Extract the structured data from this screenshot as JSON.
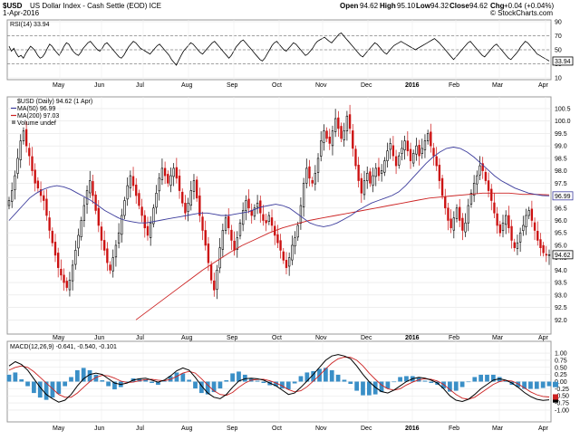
{
  "header": {
    "symbol": "$USD",
    "name": "US Dollar Index - Cash Settle (EOD) ICE",
    "date": "1-Apr-2016",
    "open_label": "Open",
    "open": "94.62",
    "high_label": "High",
    "high": "95.10",
    "low_label": "Low",
    "low": "94.32",
    "close_label": "Close",
    "close": "94.62",
    "chg_label": "Chg",
    "chg": "+0.04 (+0.04%)",
    "credit": "© StockCharts.com"
  },
  "chart_data": [
    {
      "type": "line",
      "panel": "RSI",
      "label": "RSI(14) 33.94",
      "ylim": [
        10,
        90
      ],
      "yticks": [
        10,
        30,
        50,
        70,
        90
      ],
      "reference_lines": [
        30,
        50,
        70
      ],
      "last_value": 33.94,
      "series": [
        {
          "values": [
            55,
            48,
            52,
            45,
            40,
            42,
            38,
            45,
            50,
            55,
            52,
            48,
            42,
            38,
            40,
            45,
            52,
            58,
            55,
            50,
            46,
            42,
            48,
            55,
            60,
            58,
            52,
            47,
            44,
            42,
            46,
            52,
            56,
            60,
            62,
            58,
            54,
            50,
            48,
            52,
            58,
            60,
            56,
            52,
            48,
            44,
            40,
            38,
            42,
            48,
            54,
            58,
            62,
            60,
            56,
            52,
            50,
            48,
            46,
            44,
            48,
            52,
            56,
            58,
            54,
            50,
            46,
            42,
            36,
            32,
            28,
            35,
            42,
            48,
            52,
            56,
            60,
            58,
            54,
            50,
            46,
            44,
            48,
            52,
            56,
            60,
            62,
            58,
            54,
            50,
            46,
            42,
            38,
            42,
            48,
            54,
            58,
            62,
            64,
            60,
            56,
            52,
            48,
            44,
            40,
            36,
            34,
            38,
            44,
            50,
            56,
            60,
            62,
            58,
            54,
            50,
            48,
            52,
            56,
            60,
            58,
            54,
            50,
            46,
            42,
            44,
            48,
            52,
            58,
            62,
            64,
            66,
            68,
            65,
            62,
            60,
            64,
            68,
            72,
            74,
            70,
            66,
            62,
            58,
            54,
            50,
            46,
            42,
            40,
            44,
            48,
            52,
            56,
            60,
            58,
            54,
            50,
            46,
            44,
            48,
            52,
            56,
            58,
            60,
            62,
            60,
            58,
            56,
            54,
            52,
            50,
            52,
            54,
            56,
            58,
            60,
            62,
            64,
            66,
            63,
            60,
            56,
            52,
            48,
            44,
            40,
            36,
            40,
            44,
            48,
            52,
            56,
            60,
            62,
            58,
            54,
            50,
            46,
            42,
            40,
            44,
            48,
            52,
            56,
            58,
            54,
            50,
            46,
            42,
            38,
            36,
            40,
            44,
            48,
            54,
            58,
            62,
            60,
            56,
            52,
            48,
            44,
            42,
            40,
            38,
            36,
            34
          ]
        }
      ]
    },
    {
      "type": "candlestick",
      "panel": "Price",
      "label": "$USD (Daily) 94.62 (1 Apr)",
      "ylim": [
        91.5,
        100.9
      ],
      "yticks": [
        92.0,
        92.5,
        93.0,
        93.5,
        94.0,
        94.5,
        95.0,
        95.5,
        96.0,
        96.5,
        97.0,
        97.5,
        98.0,
        98.5,
        99.0,
        99.5,
        100.0,
        100.5
      ],
      "last_price": 94.62,
      "price_marker_label": "94.62",
      "ma_marker_label": "96.99",
      "legend": [
        "MA(50) 96.99",
        "MA(200) 97.03",
        "Volume undef"
      ],
      "legend_colors": [
        "#3c3c9c",
        "#cc2222",
        "#888888"
      ],
      "x_labels": [
        "May",
        "Jun",
        "Jul",
        "Aug",
        "Sep",
        "Oct",
        "Nov",
        "Dec",
        "2016",
        "Feb",
        "Mar",
        "Apr"
      ],
      "closes": [
        96.8,
        97.2,
        97.8,
        98.5,
        99.2,
        99.6,
        99.0,
        98.6,
        98.0,
        97.5,
        97.3,
        97.0,
        96.8,
        96.2,
        95.6,
        95.1,
        94.6,
        94.1,
        93.8,
        93.5,
        93.3,
        93.6,
        94.2,
        94.8,
        95.4,
        96.0,
        96.6,
        97.2,
        97.6,
        97.0,
        96.4,
        95.8,
        95.2,
        94.8,
        94.3,
        94.0,
        94.5,
        95.0,
        95.5,
        96.2,
        96.8,
        97.4,
        97.8,
        97.4,
        97.0,
        96.6,
        96.2,
        95.7,
        95.4,
        95.9,
        96.5,
        97.1,
        97.7,
        98.1,
        97.8,
        97.5,
        97.8,
        98.1,
        97.7,
        97.2,
        96.7,
        96.3,
        96.7,
        97.2,
        97.6,
        96.9,
        96.2,
        95.6,
        95.0,
        94.3,
        93.6,
        93.2,
        94.0,
        94.9,
        95.6,
        96.1,
        95.7,
        95.2,
        94.8,
        95.3,
        95.9,
        96.4,
        96.8,
        96.5,
        96.2,
        96.5,
        96.7,
        96.3,
        96.0,
        95.9,
        96.2,
        95.8,
        95.4,
        95.1,
        94.8,
        94.4,
        94.1,
        94.5,
        95.0,
        95.3,
        95.8,
        96.6,
        97.5,
        98.1,
        97.7,
        97.5,
        97.9,
        98.5,
        99.2,
        99.6,
        99.3,
        99.1,
        99.6,
        100.1,
        99.7,
        99.3,
        99.6,
        100.2,
        99.7,
        98.9,
        98.2,
        97.6,
        97.1,
        97.6,
        97.9,
        97.5,
        97.8,
        98.1,
        97.8,
        98.0,
        98.4,
        98.8,
        99.1,
        98.6,
        98.2,
        98.6,
        98.9,
        99.2,
        98.8,
        98.4,
        98.7,
        99.0,
        98.6,
        98.9,
        99.2,
        99.5,
        99.0,
        98.6,
        98.2,
        97.6,
        97.0,
        96.5,
        96.0,
        95.7,
        96.1,
        96.5,
        96.0,
        95.6,
        95.9,
        96.6,
        97.1,
        97.5,
        97.8,
        98.2,
        98.0,
        97.6,
        97.2,
        96.8,
        96.3,
        95.8,
        95.5,
        95.9,
        96.2,
        95.7,
        95.2,
        94.9,
        95.1,
        95.5,
        95.8,
        96.2,
        96.4,
        96.0,
        95.6,
        95.2,
        94.9,
        94.7,
        94.6,
        94.62
      ],
      "ma50": [
        96.0,
        96.3,
        96.6,
        96.9,
        97.1,
        97.25,
        97.35,
        97.4,
        97.35,
        97.25,
        97.1,
        96.95,
        96.8,
        96.6,
        96.4,
        96.25,
        96.1,
        96.0,
        95.95,
        95.9,
        95.9,
        95.95,
        96.0,
        96.05,
        96.1,
        96.15,
        96.2,
        96.25,
        96.3,
        96.3,
        96.25,
        96.2,
        96.2,
        96.25,
        96.3,
        96.35,
        96.45,
        96.55,
        96.6,
        96.65,
        96.6,
        96.5,
        96.3,
        96.1,
        95.9,
        95.8,
        95.75,
        95.8,
        95.9,
        96.05,
        96.2,
        96.4,
        96.55,
        96.7,
        96.8,
        96.9,
        97.0,
        97.15,
        97.4,
        97.7,
        98.0,
        98.3,
        98.55,
        98.75,
        98.9,
        98.95,
        98.9,
        98.75,
        98.55,
        98.3,
        98.05,
        97.8,
        97.6,
        97.45,
        97.3,
        97.2,
        97.1,
        97.05,
        97.0,
        96.99
      ],
      "ma200": [
        92.0,
        92.4,
        92.8,
        93.2,
        93.6,
        94.0,
        94.35,
        94.7,
        95.0,
        95.25,
        95.5,
        95.7,
        95.85,
        96.0,
        96.1,
        96.2,
        96.3,
        96.4,
        96.5,
        96.6,
        96.7,
        96.8,
        96.9,
        96.95,
        97.0,
        97.05,
        97.1,
        97.1,
        97.1,
        97.05,
        97.05,
        97.03
      ]
    },
    {
      "type": "line",
      "panel": "MACD",
      "label": "MACD(12,26,9) -0.641, -0.540, -0.101",
      "ylim": [
        -1.35,
        1.35
      ],
      "yticks": [
        -1.0,
        -0.75,
        -0.5,
        -0.25,
        0.0,
        0.25,
        0.5,
        0.75,
        1.0
      ],
      "series": [
        {
          "name": "MACD",
          "value": -0.641,
          "values": [
            0.55,
            0.7,
            0.6,
            0.4,
            0.1,
            -0.2,
            -0.45,
            -0.6,
            -0.72,
            -0.65,
            -0.45,
            -0.15,
            0.1,
            0.25,
            0.3,
            0.25,
            0.1,
            -0.05,
            -0.1,
            -0.05,
            0.05,
            0.1,
            0.12,
            0.05,
            -0.02,
            0.05,
            0.2,
            0.38,
            0.48,
            0.4,
            0.15,
            -0.15,
            -0.4,
            -0.55,
            -0.6,
            -0.45,
            -0.2,
            0.02,
            0.1,
            0.12,
            0.1,
            0.05,
            -0.05,
            -0.15,
            -0.3,
            -0.45,
            -0.4,
            -0.2,
            0.02,
            0.25,
            0.5,
            0.75,
            0.9,
            0.95,
            0.9,
            0.8,
            0.55,
            0.25,
            0.0,
            -0.2,
            -0.35,
            -0.4,
            -0.3,
            -0.15,
            0.0,
            0.1,
            0.15,
            0.12,
            0.05,
            -0.05,
            -0.25,
            -0.5,
            -0.65,
            -0.7,
            -0.62,
            -0.45,
            -0.25,
            -0.1,
            0.05,
            0.1,
            0.05,
            -0.05,
            -0.2,
            -0.38,
            -0.52,
            -0.62,
            -0.66,
            -0.64
          ]
        },
        {
          "name": "Signal",
          "value": -0.54,
          "values": [
            0.4,
            0.5,
            0.55,
            0.5,
            0.35,
            0.15,
            -0.05,
            -0.25,
            -0.45,
            -0.55,
            -0.55,
            -0.4,
            -0.2,
            0.0,
            0.15,
            0.22,
            0.2,
            0.12,
            0.02,
            -0.03,
            -0.02,
            0.03,
            0.07,
            0.08,
            0.05,
            0.03,
            0.08,
            0.18,
            0.3,
            0.36,
            0.3,
            0.1,
            -0.12,
            -0.32,
            -0.45,
            -0.48,
            -0.38,
            -0.2,
            -0.05,
            0.05,
            0.08,
            0.08,
            0.03,
            -0.05,
            -0.15,
            -0.28,
            -0.36,
            -0.32,
            -0.18,
            0.02,
            0.22,
            0.45,
            0.65,
            0.8,
            0.86,
            0.85,
            0.75,
            0.55,
            0.3,
            0.08,
            -0.12,
            -0.25,
            -0.3,
            -0.25,
            -0.12,
            -0.02,
            0.06,
            0.1,
            0.08,
            0.02,
            -0.1,
            -0.28,
            -0.45,
            -0.58,
            -0.62,
            -0.55,
            -0.4,
            -0.25,
            -0.1,
            0.0,
            0.04,
            0.02,
            -0.08,
            -0.22,
            -0.36,
            -0.46,
            -0.52,
            -0.54
          ]
        },
        {
          "name": "Histogram",
          "value": -0.101
        }
      ]
    }
  ]
}
